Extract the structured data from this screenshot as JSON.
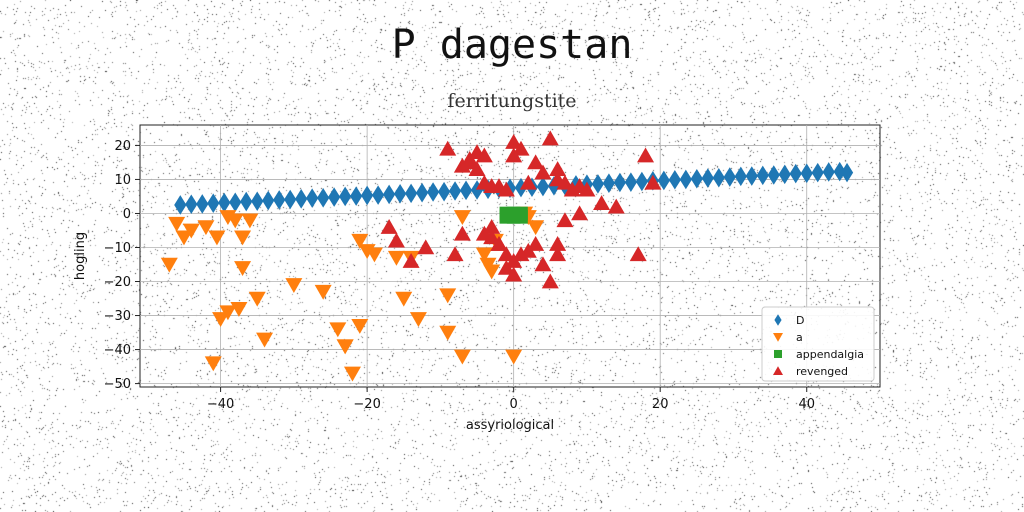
{
  "page": {
    "title": "P dagestan"
  },
  "chart_data": {
    "type": "scatter",
    "title": "ferritungstite",
    "xlabel": "assyriological",
    "ylabel": "hogling",
    "xlim": [
      -51,
      50
    ],
    "ylim": [
      -51,
      26
    ],
    "xticks": [
      -40,
      -20,
      0,
      20,
      40
    ],
    "yticks": [
      20,
      10,
      0,
      -10,
      -20,
      -30,
      -40,
      -50
    ],
    "grid": true,
    "legend_position": "lower-right",
    "series": [
      {
        "name": "D",
        "marker": "diamond",
        "color": "#1f77b4",
        "x": [
          -45.5,
          -44,
          -42.5,
          -41,
          -39.5,
          -38,
          -36.5,
          -35,
          -33.5,
          -32,
          -30.5,
          -29,
          -27.5,
          -26,
          -24.5,
          -23,
          -21.5,
          -20,
          -18.5,
          -17,
          -15.5,
          -14,
          -12.5,
          -11,
          -9.5,
          -8,
          -6.5,
          -5,
          -3.5,
          -2,
          -0.5,
          1,
          2.5,
          4,
          5.5,
          7,
          8.5,
          10,
          11.5,
          13,
          14.5,
          16,
          17.5,
          19,
          20.5,
          22,
          23.5,
          25,
          26.5,
          28,
          29.5,
          31,
          32.5,
          34,
          35.5,
          37,
          38.5,
          40,
          41.5,
          43,
          44.5,
          45.5
        ],
        "y": [
          2.5,
          2.7,
          2.8,
          3.0,
          3.2,
          3.3,
          3.5,
          3.6,
          3.8,
          4.0,
          4.1,
          4.3,
          4.5,
          4.6,
          4.8,
          5.0,
          5.1,
          5.3,
          5.4,
          5.6,
          5.8,
          5.9,
          6.1,
          6.3,
          6.4,
          6.6,
          6.8,
          6.9,
          7.1,
          7.3,
          7.4,
          7.6,
          7.7,
          7.9,
          8.1,
          8.2,
          8.4,
          8.6,
          8.7,
          8.9,
          9.1,
          9.2,
          9.4,
          9.6,
          9.7,
          9.9,
          10.0,
          10.2,
          10.4,
          10.5,
          10.7,
          10.9,
          11.0,
          11.2,
          11.3,
          11.5,
          11.7,
          11.8,
          12.0,
          12.2,
          12.3,
          12.0
        ]
      },
      {
        "name": "a",
        "marker": "triangle-down",
        "color": "#ff7f0e",
        "x": [
          -47,
          -46,
          -45,
          -44,
          -42,
          -40.5,
          -39,
          -38,
          -37,
          -37,
          -36,
          -35,
          -30,
          -40,
          -39,
          -37.5,
          -41,
          -34,
          -26,
          -24,
          -23,
          -22,
          -23,
          -21,
          -20,
          -19,
          -21,
          -16,
          -14,
          -15,
          -13,
          -9,
          -9,
          -7,
          -7,
          -4,
          -3.5,
          -3,
          -2.5,
          0,
          1.5,
          2,
          3
        ],
        "y": [
          -15,
          -3,
          -7,
          -5,
          -4,
          -7,
          -1,
          -2,
          -7,
          -16,
          -2,
          -25,
          -21,
          -31,
          -29,
          -28,
          -44,
          -37,
          -23,
          -34,
          -39,
          -47,
          -39,
          -33,
          -11,
          -12,
          -8,
          -13,
          -13,
          -25,
          -31,
          -24,
          -35,
          -42,
          -1,
          -12,
          -15,
          -17,
          -8,
          -42,
          0,
          -1,
          -4
        ]
      },
      {
        "name": "appendalgia",
        "marker": "square",
        "color": "#2ca02c",
        "x": [
          -1,
          0,
          1,
          -1,
          1,
          0
        ],
        "y": [
          -1,
          -1,
          -1,
          0,
          0,
          0
        ]
      },
      {
        "name": "revenged",
        "marker": "triangle-up",
        "color": "#d62728",
        "x": [
          -9,
          -6,
          -5,
          -4,
          0,
          1,
          3,
          5,
          -7,
          -6,
          -5,
          -4,
          -3,
          -2,
          -1,
          0,
          2,
          4,
          6,
          7,
          8,
          9,
          10,
          -17,
          -16,
          -12,
          -8,
          -7,
          -3,
          -2,
          -1,
          0,
          1,
          3,
          4,
          5,
          7,
          9,
          12,
          14,
          17,
          18,
          19,
          6,
          -14,
          -4,
          -3,
          -2,
          -1,
          0,
          2,
          6,
          6
        ],
        "y": [
          19,
          16,
          18,
          17,
          21,
          19,
          15,
          22,
          14,
          15,
          13,
          9,
          8,
          8,
          7,
          17,
          9,
          12,
          10,
          9,
          7,
          8,
          7,
          -4,
          -8,
          -10,
          -12,
          -6,
          -4,
          -9,
          -12,
          -14,
          -12,
          -9,
          -15,
          -20,
          -2,
          0,
          3,
          2,
          -12,
          17,
          9,
          13,
          -14,
          -6,
          -7,
          -9,
          -16,
          -18,
          -11,
          -9,
          -12
        ]
      }
    ]
  }
}
